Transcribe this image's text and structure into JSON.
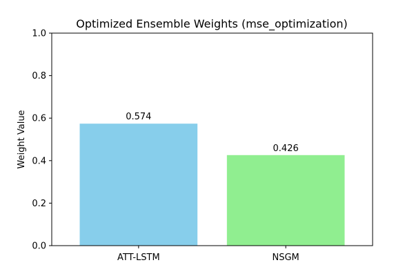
{
  "chart_data": {
    "type": "bar",
    "title": "Optimized Ensemble Weights (mse_optimization)",
    "xlabel": "",
    "ylabel": "Weight Value",
    "categories": [
      "ATT-LSTM",
      "NSGM"
    ],
    "values": [
      0.574,
      0.426
    ],
    "data_labels": [
      "0.574",
      "0.426"
    ],
    "colors": [
      "#87ceeb",
      "#90ee90"
    ],
    "ylim": [
      0,
      1
    ],
    "yticks": [
      0.0,
      0.2,
      0.4,
      0.6,
      0.8,
      1.0
    ],
    "ytick_labels": [
      "0.0",
      "0.2",
      "0.4",
      "0.6",
      "0.8",
      "1.0"
    ],
    "grid": false,
    "legend": "none"
  }
}
